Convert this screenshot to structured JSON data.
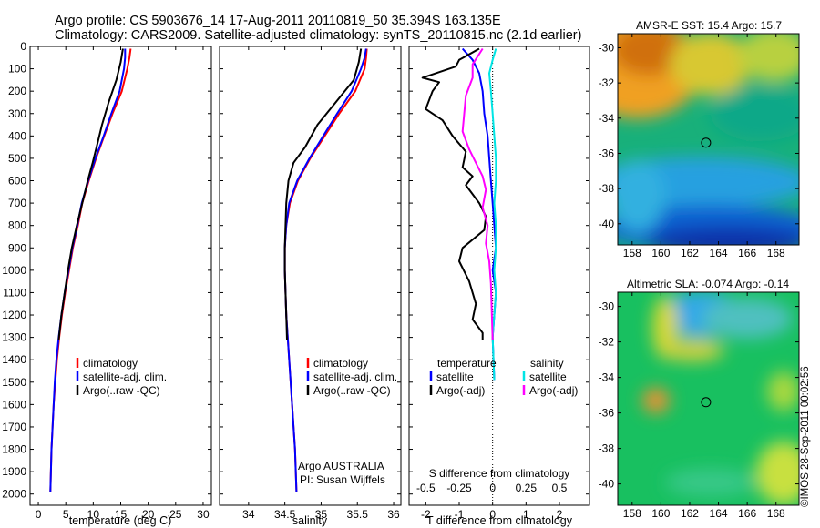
{
  "header": {
    "line1": "Argo profile: CS 5903676_14 17-Aug-2011 20110819_50 35.394S 163.135E",
    "line2": "Climatology: CARS2009. Satellite-adjusted climatology: synTS_20110815.nc (2.1d earlier)"
  },
  "credit": "©IMOS 28-Sep-2011 00:02:56",
  "colors": {
    "climatology": "#ff0000",
    "satellite": "#0000ff",
    "argo": "#000000",
    "sat_salinity": "#00e5e5",
    "argo_salinity": "#ff00ff"
  },
  "chart_data": [
    {
      "id": "temperature",
      "type": "line",
      "xlabel": "temperature (deg C)",
      "xlim": [
        -1.5,
        31.5
      ],
      "xticks": [
        0,
        5,
        10,
        15,
        20,
        25,
        30
      ],
      "ylim": [
        0,
        2050
      ],
      "ylabel": "",
      "yticks": [
        0,
        100,
        200,
        300,
        400,
        500,
        600,
        700,
        800,
        900,
        1000,
        1100,
        1200,
        1300,
        1400,
        1500,
        1600,
        1700,
        1800,
        1900,
        2000
      ],
      "legend": [
        "climatology",
        "satellite-adj. clim.",
        "Argo(..raw -QC)"
      ],
      "series": [
        {
          "name": "climatology",
          "color": "#ff0000",
          "x": [
            16.8,
            16.6,
            16.2,
            15.2,
            13.5,
            12.0,
            10.5,
            9.2,
            8.0,
            7.2,
            6.3,
            5.6,
            4.9,
            4.3,
            3.8,
            3.4,
            3.1,
            2.8,
            2.6,
            2.4,
            2.2
          ],
          "y": [
            10,
            50,
            100,
            200,
            300,
            400,
            500,
            600,
            700,
            800,
            900,
            1000,
            1100,
            1200,
            1300,
            1400,
            1500,
            1600,
            1700,
            1800,
            1990
          ]
        },
        {
          "name": "satellite-adj. clim.",
          "color": "#0000ff",
          "x": [
            15.8,
            15.8,
            15.6,
            14.8,
            13.3,
            11.9,
            10.4,
            9.1,
            7.9,
            7.1,
            6.2,
            5.5,
            4.8,
            4.2,
            3.7,
            3.3,
            3.0,
            2.8,
            2.6,
            2.4,
            2.2
          ],
          "y": [
            10,
            50,
            100,
            200,
            300,
            400,
            500,
            600,
            700,
            800,
            900,
            1000,
            1100,
            1200,
            1300,
            1400,
            1500,
            1600,
            1700,
            1800,
            1990
          ]
        },
        {
          "name": "Argo(..raw -QC)",
          "color": "#000000",
          "x": [
            15.4,
            15.0,
            14.2,
            12.8,
            11.6,
            10.6,
            9.9,
            9.0,
            8.0,
            7.0,
            6.1,
            5.4,
            4.8,
            4.2,
            3.7
          ],
          "y": [
            10,
            70,
            150,
            250,
            350,
            450,
            520,
            600,
            700,
            800,
            900,
            1000,
            1100,
            1200,
            1310
          ]
        }
      ]
    },
    {
      "id": "salinity",
      "type": "line",
      "xlabel": "salinity",
      "xlim": [
        33.6,
        36.1
      ],
      "xticks": [
        34,
        34.5,
        35,
        35.5,
        36
      ],
      "ylim": [
        0,
        2050
      ],
      "legend": [
        "climatology",
        "satellite-adj. clim.",
        "Argo(..raw -QC)"
      ],
      "annotation": [
        "Argo AUSTRALIA",
        "PI: Susan Wijffels"
      ],
      "series": [
        {
          "name": "climatology",
          "color": "#ff0000",
          "x": [
            35.63,
            35.62,
            35.6,
            35.47,
            35.25,
            35.05,
            34.85,
            34.68,
            34.57,
            34.52,
            34.5,
            34.5,
            34.51,
            34.52,
            34.54,
            34.56,
            34.58,
            34.6,
            34.62,
            34.64,
            34.66
          ],
          "y": [
            10,
            50,
            100,
            200,
            300,
            400,
            500,
            600,
            700,
            800,
            900,
            1000,
            1100,
            1200,
            1300,
            1400,
            1500,
            1600,
            1700,
            1800,
            1990
          ]
        },
        {
          "name": "satellite-adj. clim.",
          "color": "#0000ff",
          "x": [
            35.62,
            35.6,
            35.55,
            35.42,
            35.22,
            35.03,
            34.84,
            34.67,
            34.56,
            34.52,
            34.5,
            34.5,
            34.51,
            34.52,
            34.54,
            34.56,
            34.58,
            34.6,
            34.62,
            34.64,
            34.66
          ],
          "y": [
            10,
            50,
            100,
            200,
            300,
            400,
            500,
            600,
            700,
            800,
            900,
            1000,
            1100,
            1200,
            1300,
            1400,
            1500,
            1600,
            1700,
            1800,
            1990
          ]
        },
        {
          "name": "Argo(..raw -QC)",
          "color": "#000000",
          "x": [
            35.55,
            35.52,
            35.45,
            35.2,
            34.95,
            34.78,
            34.62,
            34.55,
            34.52,
            34.51,
            34.5,
            34.5,
            34.51,
            34.52,
            34.53
          ],
          "y": [
            10,
            70,
            150,
            250,
            350,
            450,
            520,
            600,
            700,
            800,
            900,
            1000,
            1100,
            1200,
            1310
          ]
        }
      ]
    },
    {
      "id": "difference",
      "type": "line",
      "title_s": "S difference from climatology",
      "xlabel": "T difference from climatology",
      "xlim": [
        -2.5,
        2.9
      ],
      "xticks": [
        -2,
        -1,
        0,
        1,
        2
      ],
      "s_ticks": [
        "-0.5",
        "-0.25",
        "0",
        "0.25",
        "0.5"
      ],
      "s_tick_pos": [
        -2,
        -1,
        0,
        1,
        2
      ],
      "ylim": [
        0,
        2050
      ],
      "legend_temperature": [
        "temperature",
        "satellite",
        "Argo(-adj)"
      ],
      "legend_salinity": [
        "salinity",
        "satellite",
        "Argo(-adj)"
      ],
      "series": [
        {
          "name": "temperature satellite",
          "color": "#0000ff",
          "x": [
            -0.9,
            -0.6,
            -0.4,
            -0.3,
            -0.25,
            -0.15,
            -0.1,
            -0.05,
            0,
            0.05,
            0.1,
            0.0,
            0.1,
            0.05,
            0.0,
            0.05
          ],
          "y": [
            10,
            60,
            120,
            200,
            300,
            400,
            500,
            600,
            700,
            800,
            900,
            1000,
            1100,
            1200,
            1300,
            1490
          ]
        },
        {
          "name": "temperature Argo(-adj)",
          "color": "#000000",
          "x": [
            -0.4,
            -1.0,
            -1.1,
            -2.1,
            -1.6,
            -1.8,
            -2.0,
            -1.5,
            -1.2,
            -0.8,
            -0.9,
            -0.6,
            -0.8,
            -0.4,
            -0.2,
            -0.25,
            -0.9,
            -1.0,
            -0.7,
            -0.5,
            -0.6,
            -0.3,
            -0.3
          ],
          "y": [
            10,
            60,
            90,
            140,
            160,
            200,
            280,
            330,
            400,
            470,
            540,
            580,
            620,
            700,
            760,
            820,
            900,
            960,
            1050,
            1150,
            1220,
            1280,
            1310
          ]
        },
        {
          "name": "salinity satellite",
          "color": "#00e5e5",
          "x": [
            0.1,
            0.0,
            -0.1,
            -0.05,
            0.0,
            0.05,
            0.1,
            0.1,
            0.05,
            0.1,
            0.1,
            0.05,
            0.1,
            0.05,
            0.0,
            0.05
          ],
          "y": [
            10,
            60,
            120,
            200,
            300,
            400,
            500,
            600,
            700,
            800,
            900,
            1000,
            1100,
            1200,
            1300,
            1490
          ]
        },
        {
          "name": "salinity Argo(-adj)",
          "color": "#ff00ff",
          "x": [
            -0.3,
            -0.6,
            -0.6,
            -0.8,
            -0.85,
            -0.9,
            -0.7,
            -0.5,
            -0.3,
            -0.2,
            -0.3,
            -0.15,
            -0.2,
            -0.1,
            -0.05,
            0.0
          ],
          "y": [
            10,
            80,
            140,
            220,
            300,
            380,
            460,
            520,
            580,
            640,
            720,
            800,
            880,
            960,
            1060,
            1310
          ]
        }
      ]
    },
    {
      "id": "sst_map",
      "type": "heatmap",
      "title": "AMSR-E SST: 15.4 Argo: 15.7",
      "xlim": [
        157,
        169.6
      ],
      "ylim": [
        -41.2,
        -29.2
      ],
      "xticks": [
        158,
        160,
        162,
        164,
        166,
        168
      ],
      "yticks": [
        -30,
        -32,
        -34,
        -36,
        -38,
        -40
      ],
      "marker": [
        163.135,
        -35.394
      ]
    },
    {
      "id": "sla_map",
      "type": "heatmap",
      "title": "Altimetric SLA: -0.074 Argo: -0.14",
      "xlim": [
        157,
        169.6
      ],
      "ylim": [
        -41.2,
        -29.2
      ],
      "xticks": [
        158,
        160,
        162,
        164,
        166,
        168
      ],
      "yticks": [
        -30,
        -32,
        -34,
        -36,
        -38,
        -40
      ],
      "marker": [
        163.135,
        -35.394
      ]
    }
  ]
}
